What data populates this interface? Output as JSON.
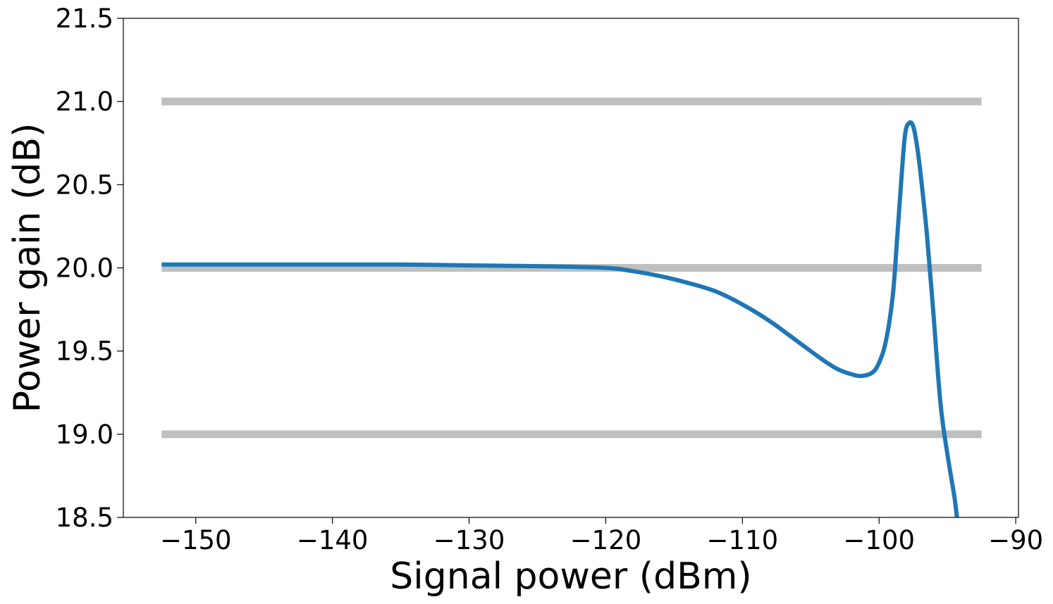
{
  "chart_data": {
    "type": "line",
    "title": "",
    "xlabel": "Signal power (dBm)",
    "ylabel": "Power gain (dB)",
    "xlim": [
      -155.3,
      -89.8
    ],
    "ylim": [
      18.5,
      21.5
    ],
    "grid": false,
    "legend": "none",
    "xticks": [
      -150,
      -140,
      -130,
      -120,
      -110,
      -100,
      -90
    ],
    "xtick_labels": [
      "−150",
      "−140",
      "−130",
      "−120",
      "−110",
      "−100",
      "−90"
    ],
    "yticks": [
      18.5,
      19.0,
      19.5,
      20.0,
      20.5,
      21.0,
      21.5
    ],
    "ytick_labels": [
      "18.5",
      "19.0",
      "19.5",
      "20.0",
      "20.5",
      "21.0",
      "21.5"
    ],
    "reference_lines": [
      {
        "y": 21.0,
        "x_range": [
          -152.5,
          -92.5
        ],
        "color": "#bfbfbf"
      },
      {
        "y": 20.0,
        "x_range": [
          -152.5,
          -92.5
        ],
        "color": "#bfbfbf"
      },
      {
        "y": 19.0,
        "x_range": [
          -152.5,
          -92.5
        ],
        "color": "#bfbfbf"
      }
    ],
    "series": [
      {
        "color": "#1f77b4",
        "x": [
          -152.5,
          -145,
          -140,
          -135,
          -130,
          -125,
          -120,
          -118,
          -116,
          -114,
          -112,
          -110,
          -108,
          -106,
          -104,
          -103,
          -102,
          -101.3,
          -100.5,
          -100,
          -99.5,
          -99,
          -98.7,
          -98.4,
          -98.1,
          -97.8,
          -97.5,
          -97.2,
          -96.9,
          -96.5,
          -96.0,
          -95.5,
          -95.0,
          -94.5,
          -94.3
        ],
        "y": [
          20.02,
          20.02,
          20.02,
          20.02,
          20.015,
          20.01,
          20.0,
          19.98,
          19.95,
          19.91,
          19.86,
          19.78,
          19.68,
          19.56,
          19.44,
          19.39,
          19.36,
          19.35,
          19.37,
          19.43,
          19.56,
          19.83,
          20.15,
          20.5,
          20.8,
          20.87,
          20.85,
          20.72,
          20.52,
          20.2,
          19.7,
          19.18,
          18.88,
          18.63,
          18.5
        ]
      }
    ]
  }
}
